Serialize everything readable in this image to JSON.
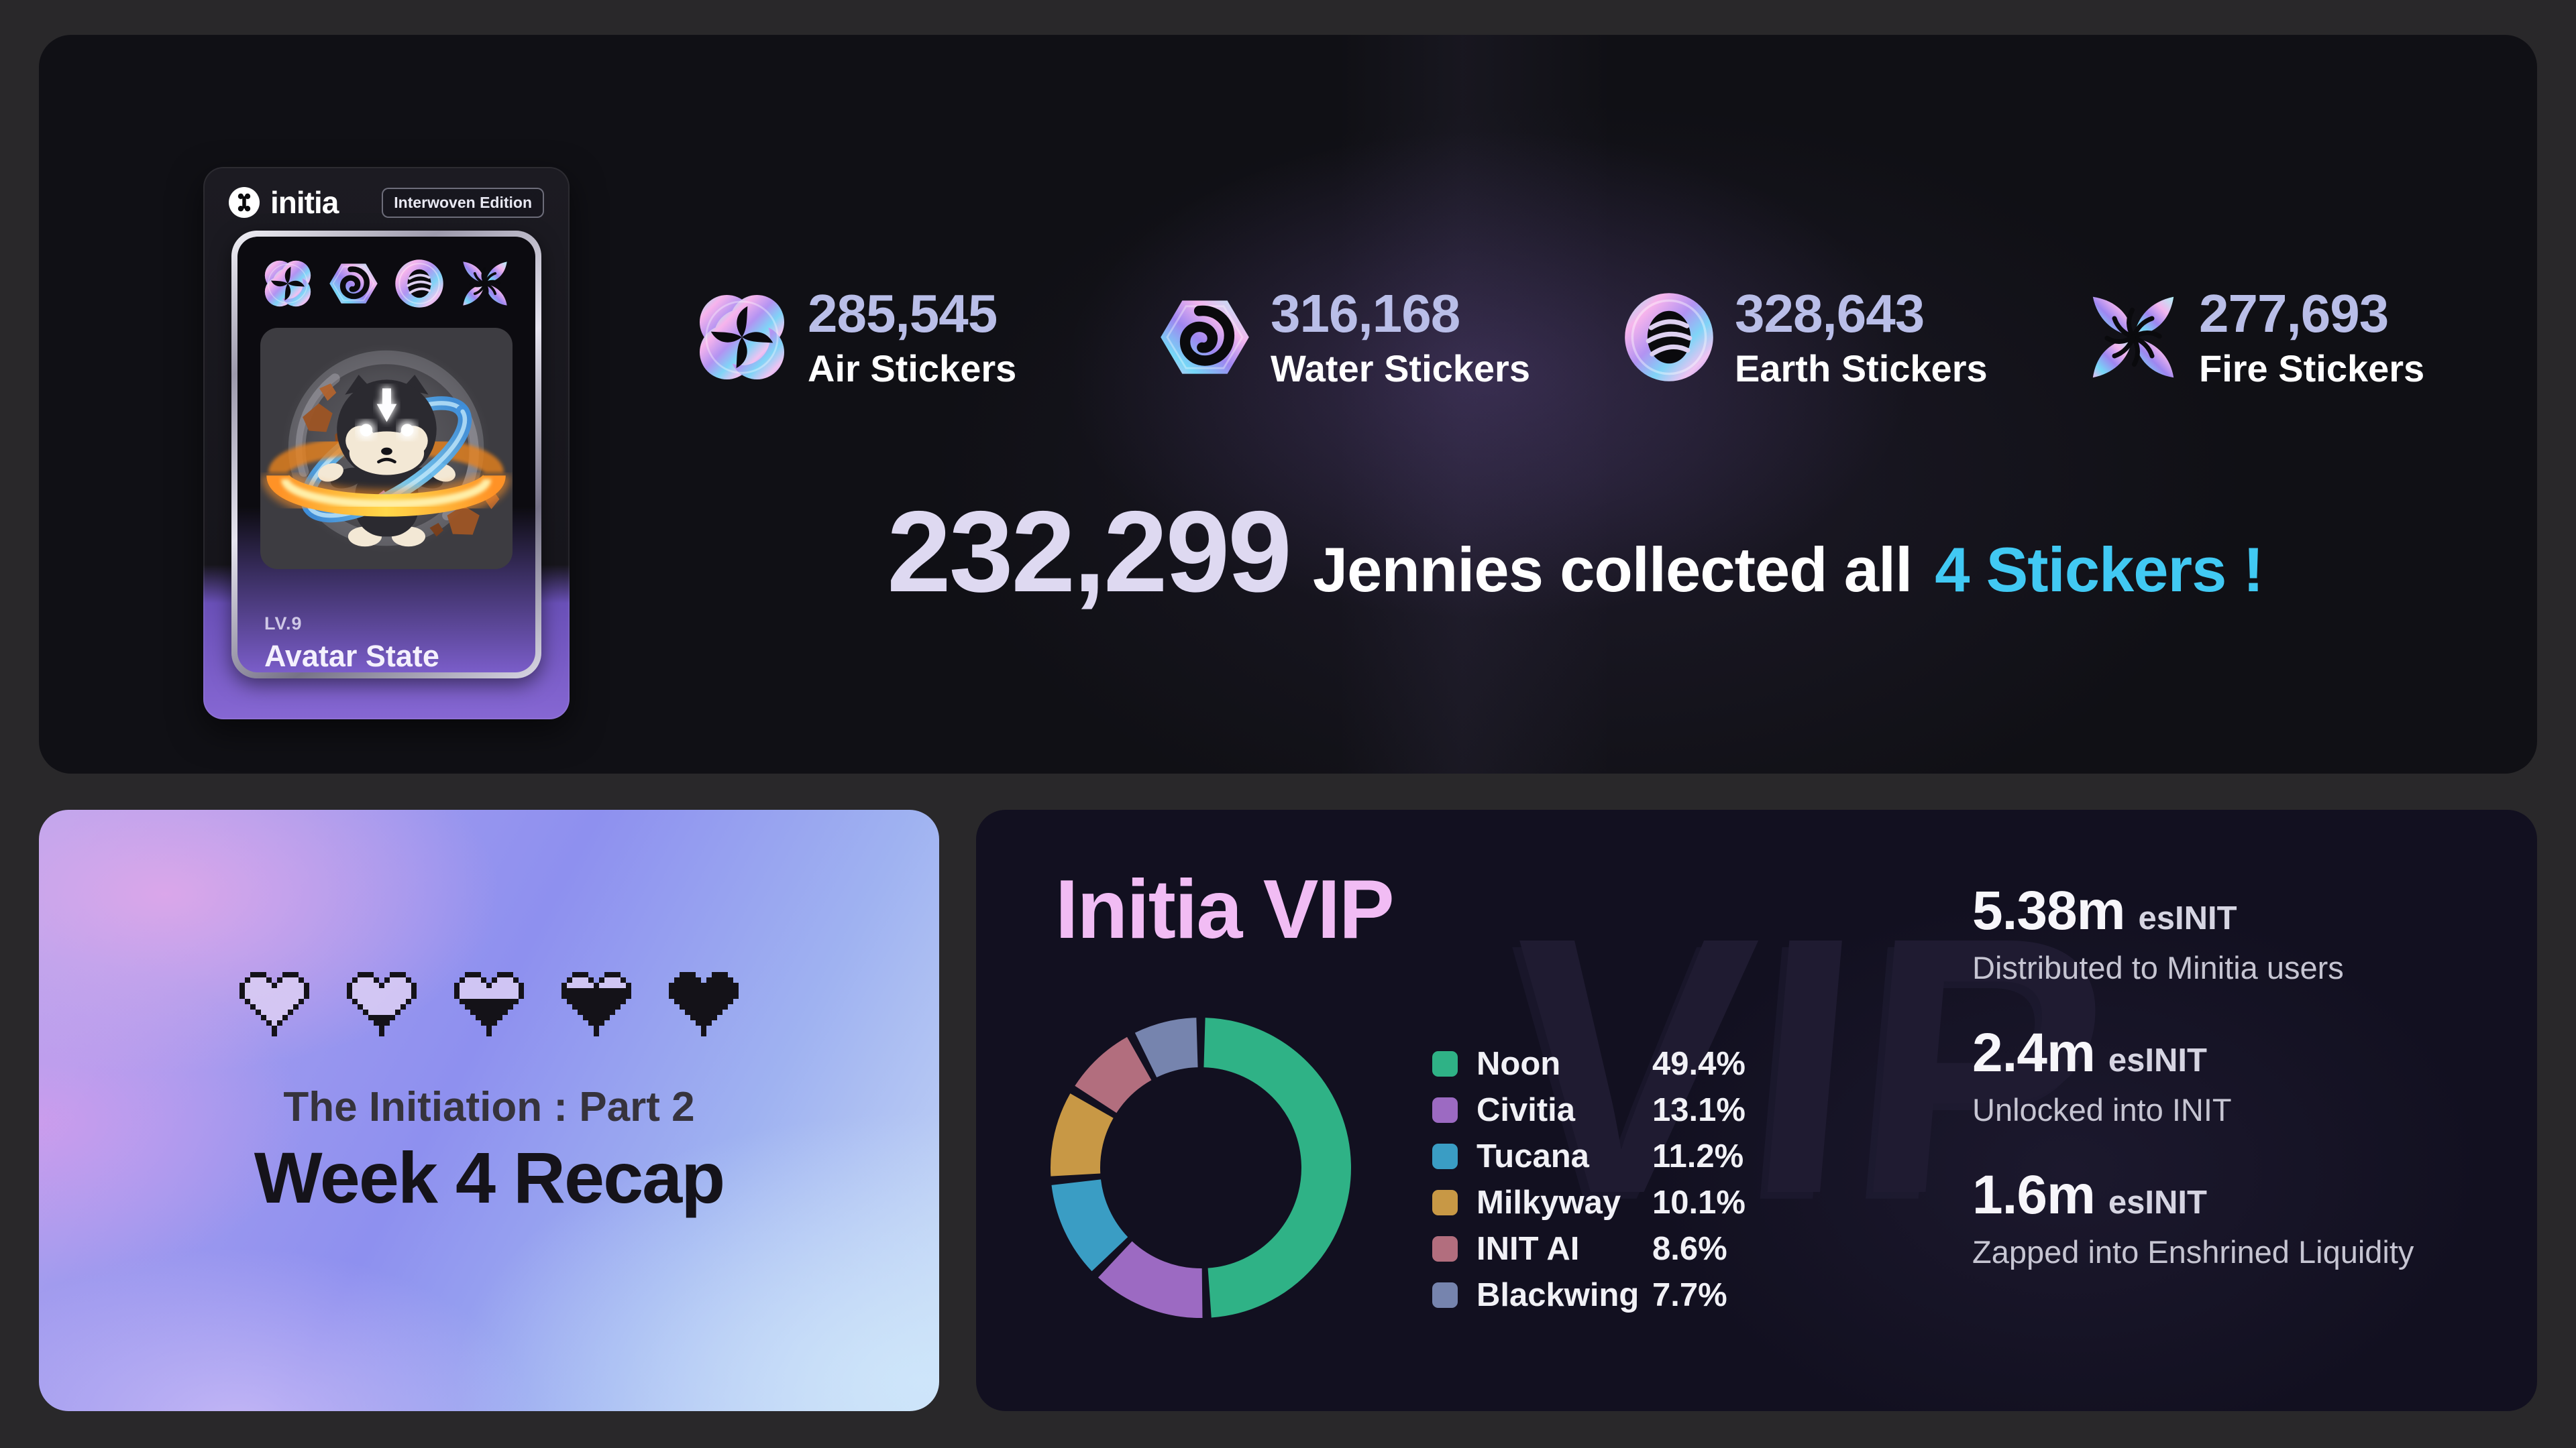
{
  "page": {
    "background": "#29282a",
    "accent_cyan": "#41c9f3",
    "accent_pink": "#f1bcf4"
  },
  "top_card": {
    "nft_card": {
      "brand": "initia",
      "edition_badge": "Interwoven Edition",
      "level": "LV.9",
      "name": "Avatar State Jennie"
    },
    "sticker_stats": [
      {
        "icon": "air-sticker-icon",
        "value": "285,545",
        "label": "Air Stickers"
      },
      {
        "icon": "water-sticker-icon",
        "value": "316,168",
        "label": "Water Stickers"
      },
      {
        "icon": "earth-sticker-icon",
        "value": "328,643",
        "label": "Earth Stickers"
      },
      {
        "icon": "fire-sticker-icon",
        "value": "277,693",
        "label": "Fire Stickers"
      }
    ],
    "headline": {
      "count": "232,299",
      "text": "Jennies collected all",
      "highlight": "4 Stickers !",
      "highlight_color": "#41c9f3"
    }
  },
  "recap_card": {
    "hearts_fill": [
      0,
      0.22,
      0.5,
      0.78,
      1
    ],
    "subtitle": "The Initiation : Part 2",
    "title": "Week 4 Recap"
  },
  "vip_card": {
    "title": "Initia VIP",
    "title_color": "#f1bcf4",
    "watermark": "VIP",
    "stats": [
      {
        "value": "5.38m",
        "unit": "esINIT",
        "description": "Distributed to Minitia users"
      },
      {
        "value": "2.4m",
        "unit": "esINIT",
        "description": "Unlocked into INIT"
      },
      {
        "value": "1.6m",
        "unit": "esINIT",
        "description": "Zapped into Enshrined Liquidity"
      }
    ]
  },
  "chart_data": {
    "type": "pie",
    "donut": true,
    "title": "Initia VIP",
    "legend_position": "right",
    "start_angle_deg": -90,
    "direction": "clockwise",
    "categories": [
      "Noon",
      "Civitia",
      "Tucana",
      "Milkyway",
      "INIT AI",
      "Blackwing"
    ],
    "values": [
      49.4,
      13.1,
      11.2,
      10.1,
      8.6,
      7.7
    ],
    "unit": "%",
    "colors": [
      "#2fb286",
      "#9c6ac2",
      "#3a9dc4",
      "#c89845",
      "#b26e7e",
      "#7684ae"
    ]
  }
}
